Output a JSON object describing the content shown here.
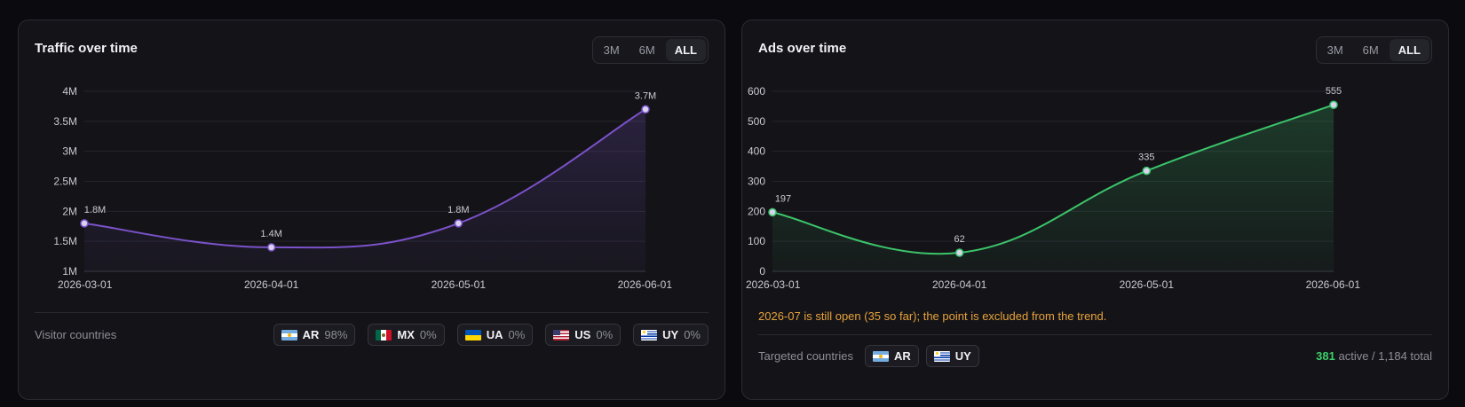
{
  "left": {
    "title": "Traffic over time",
    "range_options": [
      "3M",
      "6M",
      "ALL"
    ],
    "range_selected": "ALL",
    "footer_label": "Visitor countries",
    "countries": [
      {
        "code": "AR",
        "pct": "98%",
        "flag": "flag-ar"
      },
      {
        "code": "MX",
        "pct": "0%",
        "flag": "flag-mx"
      },
      {
        "code": "UA",
        "pct": "0%",
        "flag": "flag-ua"
      },
      {
        "code": "US",
        "pct": "0%",
        "flag": "flag-us"
      },
      {
        "code": "UY",
        "pct": "0%",
        "flag": "flag-uy"
      }
    ]
  },
  "right": {
    "title": "Ads over time",
    "range_options": [
      "3M",
      "6M",
      "ALL"
    ],
    "range_selected": "ALL",
    "note": "2026-07 is still open (35 so far); the point is excluded from the trend.",
    "footer_label": "Targeted countries",
    "countries": [
      {
        "code": "AR",
        "flag": "flag-ar"
      },
      {
        "code": "UY",
        "flag": "flag-uy"
      }
    ],
    "summary": {
      "active": "381",
      "rest": " active / 1,184 total"
    }
  },
  "colors": {
    "traffic_line": "#7b52c9",
    "ads_line": "#3cc46a",
    "accent_green": "#3ccf6b",
    "note_orange": "#e8a23a"
  },
  "chart_data": [
    {
      "type": "area",
      "title": "Traffic over time",
      "x": [
        "2026-03-01",
        "2026-04-01",
        "2026-05-01",
        "2026-06-01"
      ],
      "values": [
        1.8,
        1.4,
        1.8,
        3.7
      ],
      "point_labels": [
        "1.8M",
        "1.4M",
        "1.8M",
        "3.7M"
      ],
      "unit": "millions",
      "ylim": [
        1,
        4
      ],
      "y_ticks": [
        1,
        1.5,
        2,
        2.5,
        3,
        3.5,
        4
      ],
      "y_tick_labels": [
        "1M",
        "1.5M",
        "2M",
        "2.5M",
        "3M",
        "3.5M",
        "4M"
      ],
      "grid": true
    },
    {
      "type": "area",
      "title": "Ads over time",
      "x": [
        "2026-03-01",
        "2026-04-01",
        "2026-05-01",
        "2026-06-01"
      ],
      "values": [
        197,
        62,
        335,
        555
      ],
      "point_labels": [
        "197",
        "62",
        "335",
        "555"
      ],
      "ylim": [
        0,
        600
      ],
      "y_ticks": [
        0,
        100,
        200,
        300,
        400,
        500,
        600
      ],
      "y_tick_labels": [
        "0",
        "100",
        "200",
        "300",
        "400",
        "500",
        "600"
      ],
      "grid": true
    }
  ]
}
